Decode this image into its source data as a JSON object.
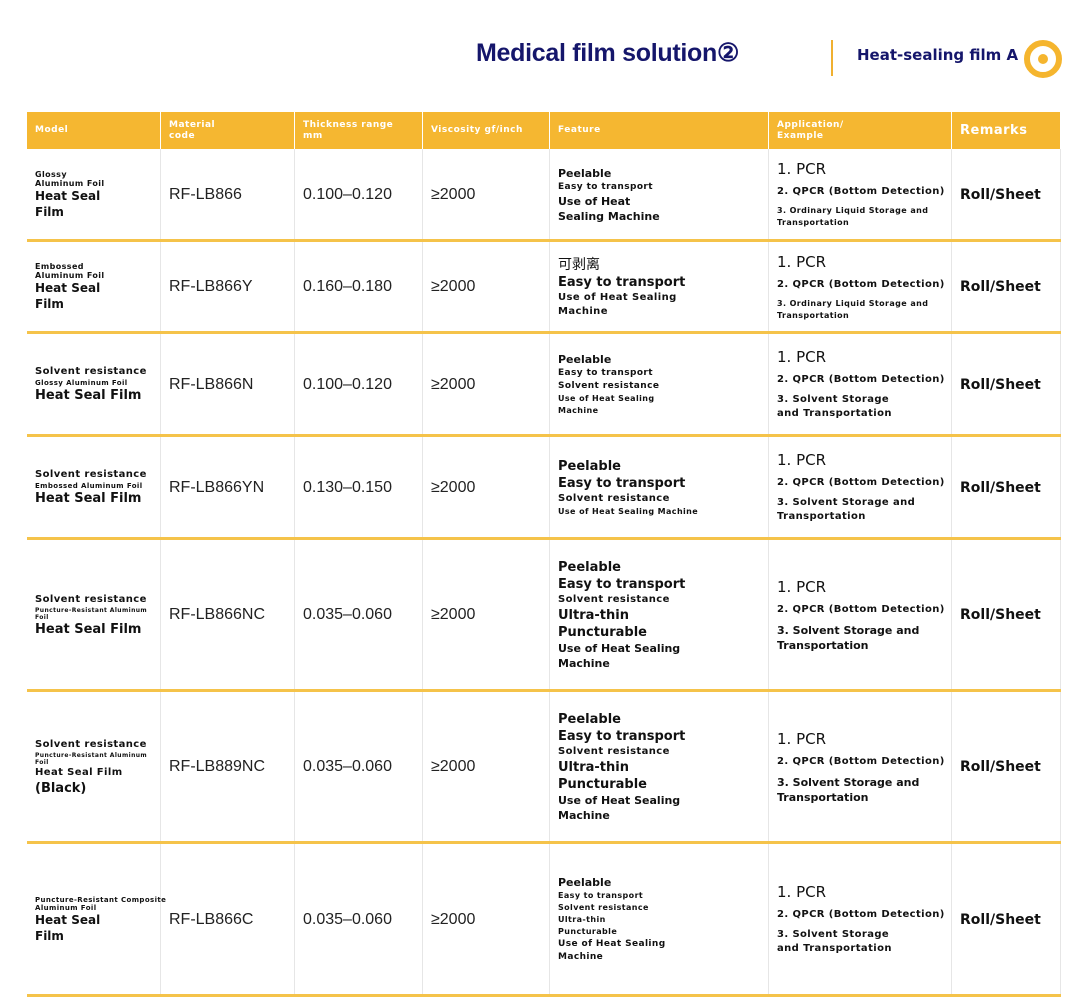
{
  "header": {
    "title": "Medical film solution②",
    "subtitle": "Heat-sealing film A"
  },
  "table": {
    "columns": [
      [
        "Model"
      ],
      [
        "Material",
        "code"
      ],
      [
        "Thickness range",
        "mm"
      ],
      [
        "Viscosity gf/inch"
      ],
      [
        "Feature"
      ],
      [
        "Application/",
        "Example"
      ],
      [
        "Remarks"
      ]
    ],
    "rows": [
      {
        "model": [
          "Glossy",
          "Aluminum Foil",
          "Heat Seal",
          "Film"
        ],
        "code": "RF-LB866",
        "thickness": "0.100–0.120",
        "viscosity": "≥2000",
        "feature": [
          "Peelable",
          "Easy to transport",
          "Use of Heat",
          "Sealing Machine"
        ],
        "application": [
          "1. PCR",
          "2. QPCR (Bottom Detection)",
          "3. Ordinary Liquid Storage and",
          "Transportation"
        ],
        "remarks": "Roll/Sheet"
      },
      {
        "model": [
          "Embossed",
          "Aluminum Foil",
          "Heat Seal",
          "Film"
        ],
        "code": "RF-LB866Y",
        "thickness": "0.160–0.180",
        "viscosity": "≥2000",
        "feature": [
          "可剥离",
          "Easy to transport",
          "Use of Heat Sealing",
          "Machine"
        ],
        "application": [
          "1. PCR",
          "2. QPCR (Bottom Detection)",
          "3. Ordinary Liquid Storage and",
          "Transportation"
        ],
        "remarks": "Roll/Sheet"
      },
      {
        "model": [
          "Solvent resistance",
          "Glossy Aluminum Foil",
          "Heat Seal Film"
        ],
        "code": "RF-LB866N",
        "thickness": "0.100–0.120",
        "viscosity": "≥2000",
        "feature": [
          "Peelable",
          "Easy to transport",
          "Solvent resistance",
          "Use of Heat Sealing",
          "Machine"
        ],
        "application": [
          "1. PCR",
          "2. QPCR (Bottom Detection)",
          "3. Solvent Storage",
          "and Transportation"
        ],
        "remarks": "Roll/Sheet"
      },
      {
        "model": [
          "Solvent resistance",
          "Embossed Aluminum Foil",
          "Heat Seal Film"
        ],
        "code": "RF-LB866YN",
        "thickness": "0.130–0.150",
        "viscosity": "≥2000",
        "feature": [
          "Peelable",
          "Easy to transport",
          "Solvent resistance",
          "Use of Heat Sealing Machine"
        ],
        "application": [
          "1. PCR",
          "2. QPCR (Bottom Detection)",
          "3. Solvent Storage and",
          "Transportation"
        ],
        "remarks": "Roll/Sheet"
      },
      {
        "model": [
          "Solvent resistance",
          "Puncture-Resistant Aluminum",
          "Foil",
          "Heat Seal Film"
        ],
        "code": "RF-LB866NC",
        "thickness": "0.035–0.060",
        "viscosity": "≥2000",
        "feature": [
          "Peelable",
          "Easy to transport",
          "Solvent resistance",
          "Ultra-thin",
          "Puncturable",
          "Use of Heat Sealing",
          "Machine"
        ],
        "application": [
          "1. PCR",
          "2. QPCR (Bottom Detection)",
          "3. Solvent Storage and",
          "Transportation"
        ],
        "remarks": "Roll/Sheet"
      },
      {
        "model": [
          "Solvent resistance",
          "Puncture-Resistant Aluminum",
          "Foil",
          "Heat Seal Film",
          "(Black)"
        ],
        "code": "RF-LB889NC",
        "thickness": "0.035–0.060",
        "viscosity": "≥2000",
        "feature": [
          "Peelable",
          "Easy to transport",
          "Solvent resistance",
          "Ultra-thin",
          "Puncturable",
          "Use of Heat Sealing",
          "Machine"
        ],
        "application": [
          "1. PCR",
          "2. QPCR (Bottom Detection)",
          "3. Solvent Storage and",
          "Transportation"
        ],
        "remarks": "Roll/Sheet"
      },
      {
        "model": [
          "Puncture-Resistant Composite",
          "Aluminum Foil",
          "Heat Seal",
          "Film"
        ],
        "code": "RF-LB866C",
        "thickness": "0.035–0.060",
        "viscosity": "≥2000",
        "feature": [
          "Peelable",
          "Easy to transport",
          "Solvent resistance",
          "Ultra-thin",
          "Puncturable",
          "Use of Heat Sealing",
          "Machine"
        ],
        "application": [
          "1. PCR",
          "2. QPCR (Bottom Detection)",
          "3. Solvent Storage",
          "and Transportation"
        ],
        "remarks": "Roll/Sheet"
      }
    ]
  }
}
